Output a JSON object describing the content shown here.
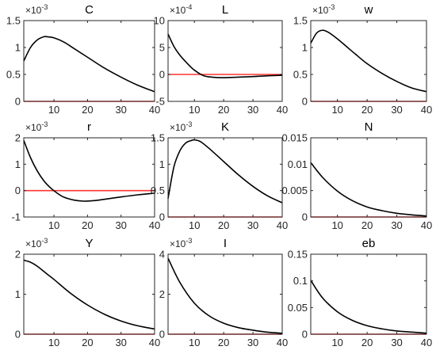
{
  "figure": {
    "line_color": "#000000",
    "zero_line_color": "#ff3333",
    "layout": "3x3 grid of subplots"
  },
  "chart_data": [
    {
      "type": "line",
      "title": "C",
      "exponent_label": "×10-3",
      "xlim": [
        1,
        40
      ],
      "ylim": [
        0,
        1.5
      ],
      "xticks": [
        10,
        20,
        30,
        40
      ],
      "yticks": [
        0,
        0.5,
        1,
        1.5
      ],
      "ytick_labels": [
        "0",
        "0.5",
        "1",
        "1.5"
      ],
      "x": [
        1,
        3,
        5,
        7,
        8,
        10,
        13,
        16,
        20,
        25,
        30,
        35,
        40
      ],
      "series": [
        {
          "values": [
            0.75,
            1.0,
            1.14,
            1.2,
            1.2,
            1.18,
            1.1,
            0.98,
            0.82,
            0.62,
            0.45,
            0.3,
            0.18
          ]
        }
      ],
      "zero_line": 0
    },
    {
      "type": "line",
      "title": "L",
      "exponent_label": "×10-4",
      "xlim": [
        1,
        40
      ],
      "ylim": [
        -5,
        10
      ],
      "xticks": [
        10,
        20,
        30,
        40
      ],
      "yticks": [
        -5,
        0,
        5,
        10
      ],
      "ytick_labels": [
        "-5",
        "0",
        "5",
        "10"
      ],
      "x": [
        1,
        3,
        5,
        8,
        10,
        13,
        16,
        20,
        25,
        30,
        35,
        40
      ],
      "series": [
        {
          "values": [
            7.5,
            5.2,
            3.6,
            1.8,
            0.8,
            -0.2,
            -0.5,
            -0.6,
            -0.5,
            -0.4,
            -0.25,
            -0.15
          ]
        }
      ],
      "zero_line": 0
    },
    {
      "type": "line",
      "title": "w",
      "exponent_label": "×10-3",
      "xlim": [
        1,
        40
      ],
      "ylim": [
        0,
        1.5
      ],
      "xticks": [
        10,
        20,
        30,
        40
      ],
      "yticks": [
        0,
        0.5,
        1,
        1.5
      ],
      "ytick_labels": [
        "0",
        "0.5",
        "1",
        "1.5"
      ],
      "x": [
        1,
        3,
        5,
        7,
        10,
        13,
        16,
        20,
        25,
        30,
        35,
        40
      ],
      "series": [
        {
          "values": [
            1.08,
            1.27,
            1.32,
            1.28,
            1.16,
            1.02,
            0.88,
            0.7,
            0.52,
            0.37,
            0.25,
            0.18
          ]
        }
      ],
      "zero_line": 0
    },
    {
      "type": "line",
      "title": "r",
      "exponent_label": "×10-3",
      "xlim": [
        1,
        40
      ],
      "ylim": [
        -1,
        2
      ],
      "xticks": [
        10,
        20,
        30,
        40
      ],
      "yticks": [
        -1,
        0,
        1,
        2
      ],
      "ytick_labels": [
        "-1",
        "0",
        "1",
        "2"
      ],
      "x": [
        1,
        3,
        5,
        7,
        9,
        11,
        13,
        16,
        19,
        22,
        25,
        30,
        35,
        40
      ],
      "series": [
        {
          "values": [
            1.9,
            1.25,
            0.75,
            0.37,
            0.1,
            -0.1,
            -0.25,
            -0.36,
            -0.4,
            -0.38,
            -0.33,
            -0.24,
            -0.16,
            -0.1
          ]
        }
      ],
      "zero_line": 0
    },
    {
      "type": "line",
      "title": "K",
      "exponent_label": "×10-3",
      "xlim": [
        1,
        40
      ],
      "ylim": [
        0,
        1.5
      ],
      "xticks": [
        10,
        20,
        30,
        40
      ],
      "yticks": [
        0,
        0.5,
        1,
        1.5
      ],
      "ytick_labels": [
        "0",
        "0.5",
        "1",
        "1.5"
      ],
      "x": [
        1,
        3,
        5,
        7,
        9,
        10,
        12,
        15,
        20,
        25,
        30,
        35,
        40
      ],
      "series": [
        {
          "values": [
            0.35,
            0.95,
            1.25,
            1.4,
            1.45,
            1.46,
            1.43,
            1.3,
            1.05,
            0.8,
            0.58,
            0.4,
            0.27
          ]
        }
      ],
      "zero_line": 0
    },
    {
      "type": "line",
      "title": "N",
      "exponent_label": "",
      "xlim": [
        1,
        40
      ],
      "ylim": [
        0,
        0.015
      ],
      "xticks": [
        10,
        20,
        30,
        40
      ],
      "yticks": [
        0,
        0.005,
        0.01,
        0.015
      ],
      "ytick_labels": [
        "0",
        "0.005",
        "0.01",
        "0.015"
      ],
      "x": [
        1,
        5,
        10,
        15,
        20,
        25,
        30,
        35,
        40
      ],
      "series": [
        {
          "values": [
            0.0103,
            0.0075,
            0.0049,
            0.0031,
            0.0019,
            0.0012,
            0.0007,
            0.0004,
            0.0002
          ]
        }
      ],
      "zero_line": 0
    },
    {
      "type": "line",
      "title": "Y",
      "exponent_label": "×10-3",
      "xlim": [
        1,
        40
      ],
      "ylim": [
        0,
        2
      ],
      "xticks": [
        10,
        20,
        30,
        40
      ],
      "yticks": [
        0,
        1,
        2
      ],
      "ytick_labels": [
        "0",
        "1",
        "2"
      ],
      "x": [
        1,
        3,
        5,
        8,
        10,
        15,
        20,
        25,
        30,
        35,
        40
      ],
      "series": [
        {
          "values": [
            1.85,
            1.8,
            1.7,
            1.5,
            1.37,
            1.02,
            0.73,
            0.5,
            0.33,
            0.21,
            0.13
          ]
        }
      ],
      "zero_line": 0
    },
    {
      "type": "line",
      "title": "I",
      "exponent_label": "×10-3",
      "xlim": [
        1,
        40
      ],
      "ylim": [
        0,
        4
      ],
      "xticks": [
        10,
        20,
        30,
        40
      ],
      "yticks": [
        0,
        2,
        4
      ],
      "ytick_labels": [
        "0",
        "2",
        "4"
      ],
      "x": [
        1,
        5,
        10,
        15,
        20,
        25,
        30,
        35,
        40
      ],
      "series": [
        {
          "values": [
            3.8,
            2.6,
            1.55,
            0.92,
            0.55,
            0.33,
            0.2,
            0.1,
            0.05
          ]
        }
      ],
      "zero_line": 0
    },
    {
      "type": "line",
      "title": "eb",
      "exponent_label": "",
      "xlim": [
        1,
        40
      ],
      "ylim": [
        0,
        0.15
      ],
      "xticks": [
        10,
        20,
        30,
        40
      ],
      "yticks": [
        0,
        0.05,
        0.1,
        0.15
      ],
      "ytick_labels": [
        "0",
        "0.05",
        "0.1",
        "0.15"
      ],
      "x": [
        1,
        5,
        10,
        15,
        20,
        25,
        30,
        35,
        40
      ],
      "series": [
        {
          "values": [
            0.101,
            0.068,
            0.042,
            0.026,
            0.016,
            0.01,
            0.006,
            0.004,
            0.002
          ]
        }
      ],
      "zero_line": 0
    }
  ]
}
